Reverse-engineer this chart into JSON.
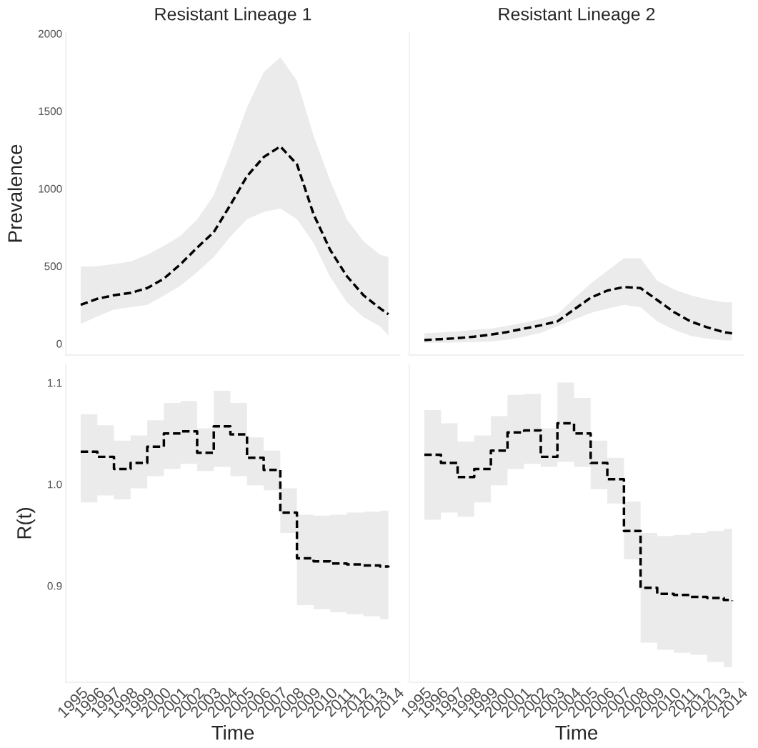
{
  "chart_data": [
    {
      "type": "line",
      "title": "Resistant Lineage 1",
      "ylabel": "Prevalence",
      "xlim": [
        1994.1,
        2014.2
      ],
      "xticks": [
        1995,
        1996,
        1997,
        1998,
        1999,
        2000,
        2001,
        2002,
        2003,
        2004,
        2005,
        2006,
        2007,
        2008,
        2009,
        2010,
        2011,
        2012,
        2013,
        2014
      ],
      "ylim": [
        -74,
        2009
      ],
      "yticks": [
        0,
        500,
        1000,
        1500,
        2000
      ],
      "tick_labels": "y",
      "grid": false,
      "line_style": "dashed",
      "x": [
        1995,
        1996,
        1997,
        1998,
        1999,
        2000,
        2001,
        2002,
        2003,
        2004,
        2005,
        2006,
        2007,
        2008,
        2009,
        2010,
        2011,
        2012,
        2013,
        2013.5
      ],
      "series": [
        {
          "color": "#000000",
          "values": [
            250,
            289,
            312,
            327,
            358,
            419,
            512,
            619,
            719,
            895,
            1080,
            1203,
            1272,
            1157,
            834,
            604,
            435,
            312,
            227,
            189
          ],
          "upper": [
            496,
            500,
            512,
            530,
            573,
            630,
            696,
            800,
            958,
            1230,
            1525,
            1750,
            1848,
            1696,
            1341,
            1050,
            803,
            660,
            573,
            558
          ],
          "lower": [
            127,
            175,
            220,
            235,
            250,
            310,
            373,
            460,
            558,
            690,
            803,
            849,
            872,
            803,
            650,
            430,
            267,
            170,
            112,
            51
          ]
        }
      ]
    },
    {
      "type": "line",
      "title": "Resistant Lineage 2",
      "xlim": [
        1994.1,
        2014.2
      ],
      "xticks": [
        1995,
        1996,
        1997,
        1998,
        1999,
        2000,
        2001,
        2002,
        2003,
        2004,
        2005,
        2006,
        2007,
        2008,
        2009,
        2010,
        2011,
        2012,
        2013,
        2014
      ],
      "ylim": [
        -74,
        2009
      ],
      "yticks": [
        0,
        500,
        1000,
        1500,
        2000
      ],
      "tick_labels": false,
      "grid": false,
      "line_style": "dashed",
      "x": [
        1995,
        1996,
        1997,
        1998,
        1999,
        2000,
        2001,
        2002,
        2003,
        2004,
        2005,
        2006,
        2007,
        2008,
        2009,
        2010,
        2011,
        2012,
        2013,
        2013.5
      ],
      "series": [
        {
          "color": "#000000",
          "values": [
            23,
            29,
            35,
            45,
            58,
            75,
            97,
            118,
            143,
            220,
            296,
            342,
            365,
            358,
            281,
            204,
            143,
            105,
            74,
            66
          ],
          "upper": [
            66,
            72,
            78,
            88,
            97,
            115,
            135,
            160,
            189,
            290,
            388,
            470,
            550,
            550,
            405,
            350,
            312,
            285,
            267,
            267
          ],
          "lower": [
            5,
            6,
            8,
            10,
            14,
            25,
            45,
            70,
            112,
            155,
            198,
            225,
            250,
            235,
            143,
            90,
            51,
            32,
            20,
            20
          ]
        }
      ]
    },
    {
      "type": "step",
      "xlabel": "Time",
      "ylabel": "R(t)",
      "xlim": [
        1994.1,
        2014.2
      ],
      "xticks": [
        1995,
        1996,
        1997,
        1998,
        1999,
        2000,
        2001,
        2002,
        2003,
        2004,
        2005,
        2006,
        2007,
        2008,
        2009,
        2010,
        2011,
        2012,
        2013,
        2014
      ],
      "ylim": [
        0.805,
        1.118
      ],
      "yticks": [
        0.9,
        {
          "value": 1.0,
          "label": "1.0"
        },
        1.1
      ],
      "grid": false,
      "line_style": "dashed",
      "x": [
        1995,
        1996,
        1997,
        1998,
        1999,
        2000,
        2001,
        2002,
        2003,
        2004,
        2005,
        2006,
        2007,
        2008,
        2009,
        2010,
        2011,
        2012,
        2013,
        2013.5
      ],
      "series": [
        {
          "color": "#000000",
          "values": [
            1.032,
            1.027,
            1.015,
            1.021,
            1.037,
            1.05,
            1.052,
            1.031,
            1.057,
            1.049,
            1.026,
            1.014,
            0.972,
            0.927,
            0.924,
            0.922,
            0.921,
            0.92,
            0.919,
            0.918
          ],
          "upper": [
            1.069,
            1.058,
            1.043,
            1.048,
            1.063,
            1.08,
            1.082,
            1.055,
            1.092,
            1.08,
            1.046,
            1.033,
            0.996,
            0.97,
            0.969,
            0.97,
            0.972,
            0.973,
            0.974,
            0.974
          ],
          "lower": [
            0.982,
            0.989,
            0.985,
            0.996,
            1.008,
            1.015,
            1.02,
            1.013,
            1.017,
            1.008,
            0.999,
            0.994,
            0.952,
            0.881,
            0.877,
            0.874,
            0.872,
            0.87,
            0.867,
            0.867
          ]
        }
      ]
    },
    {
      "type": "step",
      "xlabel": "Time",
      "xlim": [
        1994.1,
        2014.2
      ],
      "xticks": [
        1995,
        1996,
        1997,
        1998,
        1999,
        2000,
        2001,
        2002,
        2003,
        2004,
        2005,
        2006,
        2007,
        2008,
        2009,
        2010,
        2011,
        2012,
        2013,
        2014
      ],
      "ylim": [
        0.805,
        1.118
      ],
      "yticks": [
        0.9,
        1.0,
        1.1
      ],
      "tick_labels": "x",
      "grid": false,
      "line_style": "dashed",
      "x": [
        1995,
        1996,
        1997,
        1998,
        1999,
        2000,
        2001,
        2002,
        2003,
        2004,
        2005,
        2006,
        2007,
        2008,
        2009,
        2010,
        2011,
        2012,
        2013,
        2013.5
      ],
      "series": [
        {
          "color": "#000000",
          "values": [
            1.029,
            1.021,
            1.007,
            1.015,
            1.033,
            1.051,
            1.053,
            1.027,
            1.06,
            1.05,
            1.021,
            1.005,
            0.954,
            0.898,
            0.892,
            0.891,
            0.889,
            0.888,
            0.886,
            0.885
          ],
          "upper": [
            1.073,
            1.06,
            1.042,
            1.048,
            1.067,
            1.088,
            1.089,
            1.055,
            1.1,
            1.085,
            1.043,
            1.026,
            0.983,
            0.952,
            0.949,
            0.95,
            0.952,
            0.954,
            0.956,
            0.956
          ],
          "lower": [
            0.965,
            0.972,
            0.968,
            0.982,
            0.999,
            1.015,
            1.02,
            1.017,
            1.022,
            1.017,
            0.995,
            0.981,
            0.926,
            0.844,
            0.837,
            0.834,
            0.832,
            0.825,
            0.82,
            0.82
          ]
        }
      ]
    }
  ]
}
